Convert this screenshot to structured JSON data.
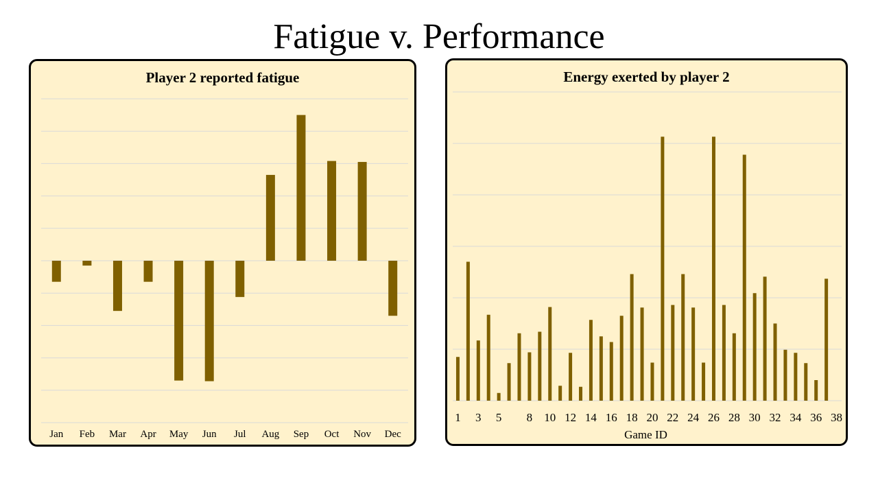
{
  "page": {
    "title": "Fatigue v. Performance"
  },
  "colors": {
    "bar": "#7f6000",
    "panel_bg": "#fff2cc",
    "gridline": "#d9d9d9"
  },
  "chart_data": [
    {
      "type": "bar",
      "title": "Player 2 reported fatigue",
      "categories": [
        "Jan",
        "Feb",
        "Mar",
        "Apr",
        "May",
        "Jun",
        "Jul",
        "Aug",
        "Sep",
        "Oct",
        "Nov",
        "Dec"
      ],
      "values": [
        -0.65,
        -0.15,
        -1.55,
        -0.65,
        -3.7,
        -3.72,
        -1.12,
        2.65,
        4.5,
        3.08,
        3.05,
        -1.7
      ],
      "ylim": [
        -5,
        5
      ],
      "grid": true,
      "y_tick_labels": false
    },
    {
      "type": "bar",
      "title": "Energy exerted by player 2",
      "xlabel": "Game ID",
      "categories": [
        "1",
        "2",
        "3",
        "4",
        "5",
        "6",
        "7",
        "8",
        "9",
        "10",
        "11",
        "12",
        "13",
        "14",
        "15",
        "16",
        "17",
        "18",
        "19",
        "20",
        "21",
        "22",
        "23",
        "24",
        "25",
        "26",
        "27",
        "28",
        "29",
        "30",
        "31",
        "32",
        "33",
        "34",
        "35",
        "36",
        "37",
        "38"
      ],
      "x_tick_labels": [
        "1",
        "3",
        "5",
        "8",
        "10",
        "12",
        "14",
        "16",
        "18",
        "20",
        "22",
        "24",
        "26",
        "28",
        "30",
        "32",
        "34",
        "36",
        "38"
      ],
      "values": [
        0.85,
        2.7,
        1.17,
        1.67,
        0.15,
        0.73,
        1.31,
        0.94,
        1.34,
        1.82,
        0.29,
        0.93,
        0.27,
        1.57,
        1.25,
        1.14,
        1.65,
        2.46,
        1.81,
        0.74,
        5.13,
        1.86,
        2.46,
        1.81,
        0.74,
        5.13,
        1.86,
        1.31,
        4.78,
        2.09,
        2.41,
        1.5,
        0.99,
        0.93,
        0.73,
        0.4,
        2.37,
        0.0
      ],
      "ylim": [
        0,
        6
      ],
      "grid": true,
      "y_tick_labels": false
    }
  ]
}
